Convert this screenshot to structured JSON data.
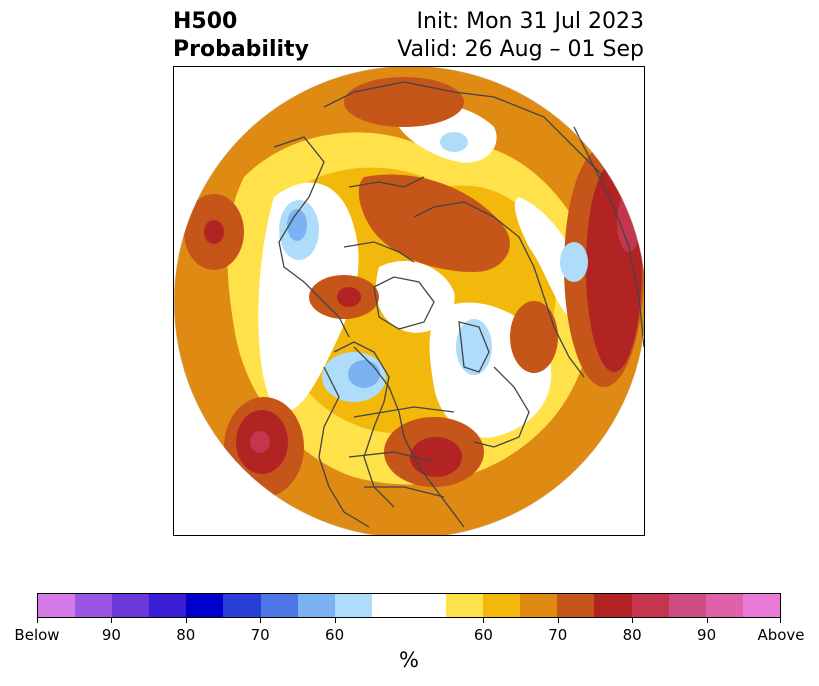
{
  "header": {
    "variable": "H500",
    "field": "Probability",
    "init": "Init: Mon 31 Jul 2023",
    "valid": "Valid: 26 Aug – 01 Sep"
  },
  "map": {
    "projection": "north polar stereographic",
    "region": "Northern Hemisphere",
    "land_outline_color": "#444444"
  },
  "colorbar": {
    "label": "%",
    "tick_labels": [
      "Below",
      "90",
      "80",
      "70",
      "60",
      "60",
      "70",
      "80",
      "90",
      "Above"
    ],
    "below_colors": [
      "#d67ae8",
      "#9a55e2",
      "#6a38d8",
      "#3a1ed6",
      "#0000cc",
      "#2a3ed8",
      "#4f76e6",
      "#7ab2f2",
      "#aedcfa"
    ],
    "neutral_colors": [
      "#ffffff",
      "#ffffff"
    ],
    "above_colors": [
      "#ffe14a",
      "#f3b80c",
      "#df8a12",
      "#c65519",
      "#b22424",
      "#c4354e",
      "#cc4d82",
      "#de62a8",
      "#ea7ad8"
    ]
  }
}
